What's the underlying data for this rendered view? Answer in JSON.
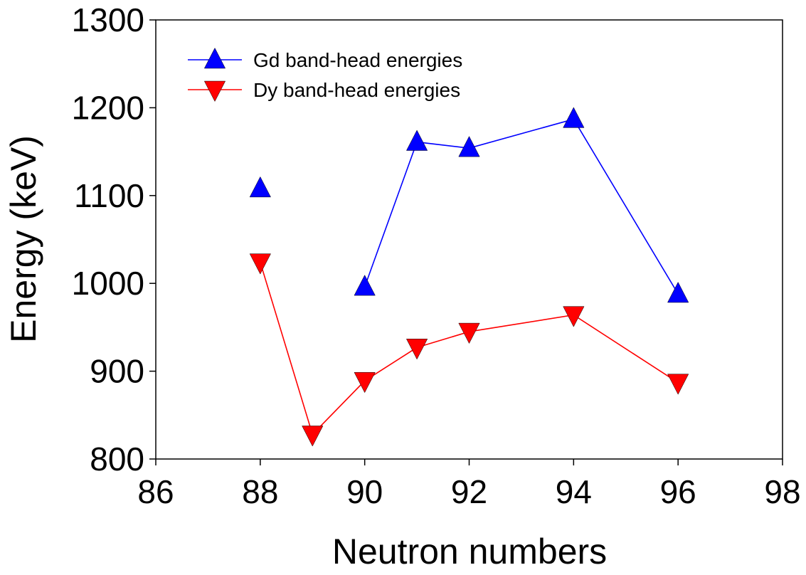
{
  "chart_data": {
    "type": "line",
    "title": "",
    "xlabel": "Neutron numbers",
    "ylabel": "Energy (keV)",
    "xlim": [
      86,
      98
    ],
    "ylim": [
      800,
      1300
    ],
    "xticks": [
      86,
      88,
      90,
      92,
      94,
      96,
      98
    ],
    "yticks": [
      800,
      900,
      1000,
      1100,
      1200,
      1300
    ],
    "grid": false,
    "legend_position": "top-left",
    "series": [
      {
        "name": "Gd band-head energies",
        "color": "#0000ff",
        "marker": "triangle-up",
        "points": [
          {
            "x": 88,
            "y": 1108
          },
          {
            "x": 90,
            "y": 996
          },
          {
            "x": 91,
            "y": 1161
          },
          {
            "x": 92,
            "y": 1154
          },
          {
            "x": 94,
            "y": 1187
          },
          {
            "x": 96,
            "y": 988
          }
        ],
        "line_segments": [
          [
            1,
            5
          ]
        ]
      },
      {
        "name": "Dy band-head energies",
        "color": "#ff0000",
        "marker": "triangle-down",
        "points": [
          {
            "x": 88,
            "y": 1024
          },
          {
            "x": 89,
            "y": 828
          },
          {
            "x": 90,
            "y": 889
          },
          {
            "x": 91,
            "y": 927
          },
          {
            "x": 92,
            "y": 945
          },
          {
            "x": 94,
            "y": 964
          },
          {
            "x": 96,
            "y": 887
          }
        ],
        "line_segments": [
          [
            0,
            6
          ]
        ]
      }
    ]
  }
}
